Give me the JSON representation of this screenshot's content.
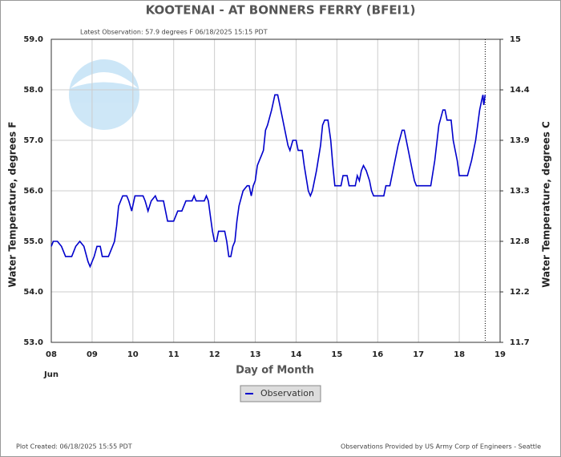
{
  "chart_data": {
    "type": "line",
    "title": "KOOTENAI - AT BONNERS FERRY  (BFEI1)",
    "subtitle": "Latest Observation: 57.9 degrees F 06/18/2025 15:15 PDT",
    "ylabel": "Water Temperature, degrees F",
    "y2label": "Water Temperature, degrees C",
    "xlabel": "Day of Month",
    "x_month_label": "Jun",
    "footer_left": "Plot Created: 06/18/2025 15:55 PDT",
    "footer_right": "Observations Provided by US Army Corp of Engineers - Seattle",
    "xlim": [
      8,
      19
    ],
    "xticks": [
      {
        "value": 8,
        "label": "08"
      },
      {
        "value": 9,
        "label": "09"
      },
      10,
      11,
      12,
      13,
      14,
      15,
      16,
      17,
      18,
      19
    ],
    "ylim": [
      53,
      59
    ],
    "yticks": [
      {
        "value": 53,
        "label": "53.0"
      },
      {
        "value": 54,
        "label": "54.0"
      },
      {
        "value": 55,
        "label": "55.0"
      },
      {
        "value": 56,
        "label": "56.0"
      },
      {
        "value": 57,
        "label": "57.0"
      },
      {
        "value": 58,
        "label": "58.0"
      },
      {
        "value": 59,
        "label": "59.0"
      }
    ],
    "y2lim": [
      11.667,
      15
    ],
    "y2ticks": [
      {
        "value": 11.667,
        "label": "11.7"
      },
      {
        "value": 12.222,
        "label": "12.2"
      },
      {
        "value": 12.778,
        "label": "12.8"
      },
      {
        "value": 13.333,
        "label": "13.3"
      },
      {
        "value": 13.889,
        "label": "13.9"
      },
      {
        "value": 14.444,
        "label": "14.4"
      },
      15
    ],
    "grid": true,
    "observation_time_marker": 18.635,
    "x": [
      8.0,
      8.05,
      8.15,
      8.25,
      8.35,
      8.5,
      8.6,
      8.7,
      8.8,
      8.9,
      8.95,
      9.05,
      9.12,
      9.2,
      9.25,
      9.4,
      9.5,
      9.55,
      9.6,
      9.65,
      9.75,
      9.85,
      9.9,
      9.97,
      10.05,
      10.15,
      10.25,
      10.3,
      10.37,
      10.45,
      10.55,
      10.6,
      10.75,
      10.85,
      11.0,
      11.1,
      11.2,
      11.3,
      11.45,
      11.5,
      11.55,
      11.75,
      11.8,
      11.85,
      11.9,
      11.95,
      12.0,
      12.05,
      12.1,
      12.25,
      12.3,
      12.35,
      12.4,
      12.45,
      12.5,
      12.55,
      12.6,
      12.7,
      12.8,
      12.85,
      12.9,
      12.95,
      13.0,
      13.05,
      13.1,
      13.15,
      13.2,
      13.25,
      13.3,
      13.4,
      13.48,
      13.55,
      13.6,
      13.7,
      13.8,
      13.85,
      13.92,
      14.0,
      14.05,
      14.15,
      14.2,
      14.3,
      14.35,
      14.4,
      14.5,
      14.6,
      14.65,
      14.7,
      14.78,
      14.85,
      14.9,
      14.95,
      15.1,
      15.15,
      15.25,
      15.3,
      15.45,
      15.5,
      15.55,
      15.6,
      15.65,
      15.72,
      15.8,
      15.85,
      15.9,
      16.15,
      16.2,
      16.3,
      16.4,
      16.5,
      16.6,
      16.65,
      16.75,
      16.85,
      16.9,
      16.95,
      17.3,
      17.4,
      17.5,
      17.6,
      17.65,
      17.7,
      17.8,
      17.85,
      17.95,
      18.0,
      18.2,
      18.3,
      18.4,
      18.5,
      18.55,
      18.58,
      18.6,
      18.635
    ],
    "series": [
      {
        "name": "Observation",
        "color": "#0000cc",
        "values": [
          54.9,
          55.0,
          55.0,
          54.9,
          54.7,
          54.7,
          54.9,
          55.0,
          54.9,
          54.6,
          54.5,
          54.7,
          54.9,
          54.9,
          54.7,
          54.7,
          54.9,
          55.0,
          55.3,
          55.7,
          55.9,
          55.9,
          55.8,
          55.6,
          55.9,
          55.9,
          55.9,
          55.8,
          55.6,
          55.8,
          55.9,
          55.8,
          55.8,
          55.4,
          55.4,
          55.6,
          55.6,
          55.8,
          55.8,
          55.9,
          55.8,
          55.8,
          55.9,
          55.8,
          55.5,
          55.2,
          55.0,
          55.0,
          55.2,
          55.2,
          55.0,
          54.7,
          54.7,
          54.9,
          55.0,
          55.4,
          55.7,
          56.0,
          56.1,
          56.1,
          55.9,
          56.1,
          56.2,
          56.5,
          56.6,
          56.7,
          56.8,
          57.2,
          57.3,
          57.6,
          57.9,
          57.9,
          57.7,
          57.3,
          56.9,
          56.8,
          57.0,
          57.0,
          56.8,
          56.8,
          56.5,
          56.0,
          55.9,
          56.0,
          56.4,
          56.9,
          57.3,
          57.4,
          57.4,
          57.0,
          56.5,
          56.1,
          56.1,
          56.3,
          56.3,
          56.1,
          56.1,
          56.3,
          56.2,
          56.4,
          56.5,
          56.4,
          56.2,
          56.0,
          55.9,
          55.9,
          56.1,
          56.1,
          56.5,
          56.9,
          57.2,
          57.2,
          56.8,
          56.4,
          56.2,
          56.1,
          56.1,
          56.6,
          57.3,
          57.6,
          57.6,
          57.4,
          57.4,
          57.0,
          56.6,
          56.3,
          56.3,
          56.6,
          57.0,
          57.6,
          57.8,
          57.9,
          57.7,
          57.9
        ]
      }
    ]
  }
}
